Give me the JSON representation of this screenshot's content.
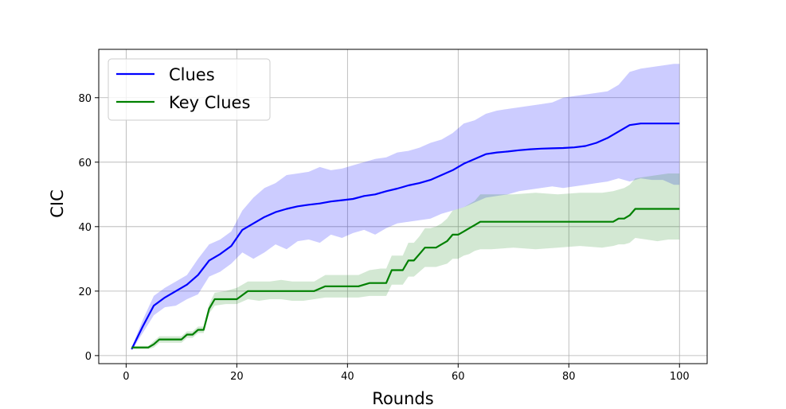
{
  "chart_data": {
    "type": "line",
    "title": "",
    "xlabel": "Rounds",
    "ylabel": "CIC",
    "xlim": [
      -4.95,
      105.0
    ],
    "ylim": [
      -2.5,
      95.0
    ],
    "xticks": [
      0,
      20,
      40,
      60,
      80,
      100
    ],
    "yticks": [
      0,
      20,
      40,
      60,
      80
    ],
    "grid": true,
    "legend_position": "top-left",
    "series": [
      {
        "name": "Clues",
        "color": "#0000ff",
        "band_color": "#0000ff",
        "x": [
          1,
          3,
          5,
          7,
          9,
          11,
          13,
          15,
          17,
          19,
          21,
          23,
          25,
          27,
          29,
          31,
          33,
          35,
          37,
          39,
          41,
          43,
          45,
          47,
          49,
          51,
          53,
          55,
          57,
          59,
          61,
          63,
          65,
          67,
          69,
          71,
          73,
          75,
          77,
          79,
          81,
          83,
          85,
          87,
          89,
          91,
          93,
          95,
          97,
          99,
          100
        ],
        "y": [
          2,
          9,
          15.5,
          18,
          20,
          22,
          25,
          29.5,
          31.5,
          34,
          39,
          41,
          43,
          44.5,
          45.5,
          46.3,
          46.8,
          47.2,
          47.8,
          48.2,
          48.6,
          49.5,
          50,
          51,
          51.8,
          52.8,
          53.5,
          54.5,
          56,
          57.5,
          59.5,
          61,
          62.5,
          63,
          63.3,
          63.7,
          64,
          64.2,
          64.3,
          64.4,
          64.6,
          65,
          66,
          67.5,
          69.5,
          71.5,
          72,
          72,
          72,
          72,
          72
        ],
        "lower": [
          1.5,
          7,
          12.5,
          15,
          15.5,
          17.5,
          19,
          24.5,
          26,
          28.5,
          32,
          30,
          32,
          34.5,
          33,
          35.5,
          36,
          35,
          37.5,
          36.5,
          38,
          39,
          37.5,
          39.5,
          41,
          41.5,
          42,
          42.5,
          44,
          45,
          46,
          47.5,
          49,
          49.5,
          50,
          51,
          51.5,
          52,
          52.5,
          52,
          52.5,
          53,
          53.5,
          54,
          55,
          54,
          55,
          54.5,
          54.5,
          53,
          53
        ],
        "upper": [
          2.5,
          11,
          18.5,
          21,
          23,
          25,
          30,
          34.5,
          36,
          38.5,
          45,
          49,
          52,
          53.5,
          56,
          56.5,
          57,
          58.5,
          57.5,
          58,
          59,
          60,
          61,
          61.5,
          63,
          63.5,
          64.5,
          66,
          67,
          69,
          72,
          73,
          75,
          76,
          76.5,
          77,
          77.5,
          78,
          78.5,
          80,
          80.5,
          81,
          81.5,
          82,
          84,
          88,
          89,
          89.5,
          90,
          90.5,
          90.5
        ]
      },
      {
        "name": "Key Clues",
        "color": "#008000",
        "band_color": "#228b22",
        "x": [
          1,
          2,
          3,
          4,
          5,
          6,
          7,
          8,
          9,
          10,
          11,
          12,
          13,
          14,
          15,
          16,
          18,
          20,
          22,
          24,
          26,
          28,
          30,
          32,
          34,
          36,
          38,
          40,
          42,
          44,
          46,
          47,
          48,
          50,
          51,
          52,
          53,
          54,
          55,
          56,
          57,
          58,
          59,
          60,
          61,
          62,
          63,
          64,
          66,
          70,
          74,
          78,
          82,
          86,
          88,
          89,
          90,
          91,
          92,
          94,
          96,
          98,
          100
        ],
        "y": [
          2.5,
          2.5,
          2.5,
          2.5,
          3.5,
          5,
          5,
          5,
          5,
          5,
          6.5,
          6.5,
          8,
          8,
          14.5,
          17.5,
          17.5,
          17.5,
          20,
          20,
          20,
          20,
          20,
          20,
          20,
          21.5,
          21.5,
          21.5,
          21.5,
          22.5,
          22.5,
          22.5,
          26.5,
          26.5,
          29.5,
          29.5,
          31.5,
          33.5,
          33.5,
          33.5,
          34.5,
          35.5,
          37.5,
          37.5,
          38.5,
          39.5,
          40.5,
          41.5,
          41.5,
          41.5,
          41.5,
          41.5,
          41.5,
          41.5,
          41.5,
          42.5,
          42.5,
          43.5,
          45.5,
          45.5,
          45.5,
          45.5,
          45.5
        ],
        "lower": [
          2,
          2,
          2,
          2,
          2.5,
          4,
          4,
          4,
          4,
          4,
          5.5,
          5.5,
          7,
          7,
          13,
          15.5,
          16,
          16,
          17.5,
          17,
          17.5,
          17.5,
          17,
          17,
          17.5,
          18,
          18,
          18,
          18,
          18.5,
          18.5,
          18.5,
          22,
          22,
          24.5,
          24.5,
          26,
          27.5,
          27.5,
          27.5,
          28,
          28.5,
          30,
          30,
          31,
          31.5,
          32.5,
          33,
          33,
          33.5,
          33,
          33.5,
          34,
          33.5,
          34,
          34.5,
          34.5,
          35,
          36.5,
          36,
          35.5,
          36,
          36
        ],
        "upper": [
          3,
          3,
          3,
          3,
          4.5,
          6,
          6,
          6,
          6,
          6,
          7.5,
          7.5,
          9,
          9,
          16,
          19.5,
          20,
          21,
          23,
          23,
          23,
          23.5,
          23,
          23,
          23,
          25,
          25,
          25,
          25,
          26.5,
          27,
          27,
          31,
          31,
          35,
          35,
          37,
          39.5,
          39.5,
          40,
          41,
          42.5,
          45,
          45.5,
          46,
          47,
          48,
          50,
          50,
          50,
          50.5,
          50,
          50.5,
          50.5,
          51,
          51.5,
          52,
          53,
          55,
          55.5,
          56,
          56.5,
          56.5
        ]
      }
    ]
  }
}
